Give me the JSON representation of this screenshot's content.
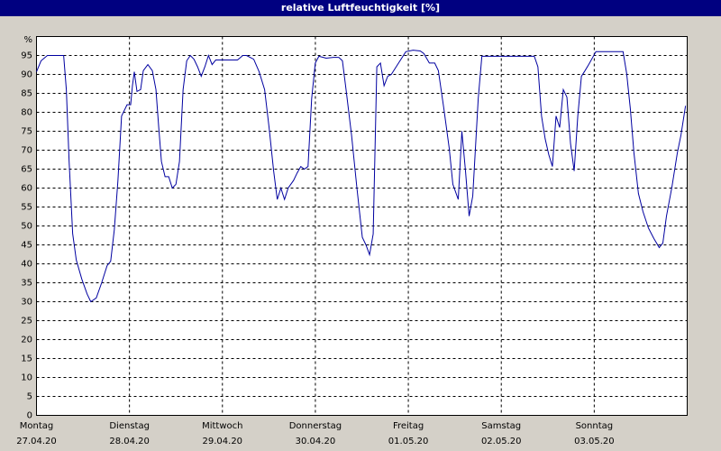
{
  "chart_data": {
    "type": "line",
    "title": "relative Luftfeuchtigkeit [%]",
    "y_unit": "%",
    "xlim": [
      0,
      7
    ],
    "ylim": [
      0,
      100
    ],
    "xticks": [
      {
        "value": 0,
        "label": "Montag",
        "date": "27.04.20"
      },
      {
        "value": 1,
        "label": "Dienstag",
        "date": "28.04.20"
      },
      {
        "value": 2,
        "label": "Mittwoch",
        "date": "29.04.20"
      },
      {
        "value": 3,
        "label": "Donnerstag",
        "date": "30.04.20"
      },
      {
        "value": 4,
        "label": "Freitag",
        "date": "01.05.20"
      },
      {
        "value": 5,
        "label": "Samstag",
        "date": "02.05.20"
      },
      {
        "value": 6,
        "label": "Sonntag",
        "date": "03.05.20"
      }
    ],
    "yticks": [
      0,
      5,
      10,
      15,
      20,
      25,
      30,
      35,
      40,
      45,
      50,
      55,
      60,
      65,
      70,
      75,
      80,
      85,
      90,
      95
    ],
    "grid": true,
    "x": [
      0,
      0.049,
      0.117,
      0.292,
      0.321,
      0.351,
      0.389,
      0.428,
      0.487,
      0.545,
      0.584,
      0.643,
      0.701,
      0.759,
      0.798,
      0.837,
      0.876,
      0.915,
      0.974,
      1.013,
      1.032,
      1.052,
      1.081,
      1.12,
      1.149,
      1.198,
      1.246,
      1.285,
      1.315,
      1.344,
      1.383,
      1.422,
      1.461,
      1.5,
      1.538,
      1.577,
      1.616,
      1.655,
      1.694,
      1.733,
      1.772,
      1.811,
      1.85,
      1.889,
      1.928,
      2.045,
      2.162,
      2.22,
      2.259,
      2.337,
      2.395,
      2.454,
      2.502,
      2.551,
      2.59,
      2.629,
      2.668,
      2.707,
      2.765,
      2.804,
      2.843,
      2.882,
      2.921,
      2.96,
      2.999,
      3.038,
      3.116,
      3.194,
      3.252,
      3.291,
      3.33,
      3.389,
      3.447,
      3.505,
      3.544,
      3.583,
      3.622,
      3.661,
      3.7,
      3.739,
      3.778,
      3.817,
      3.895,
      3.973,
      4.051,
      4.128,
      4.167,
      4.226,
      4.284,
      4.323,
      4.382,
      4.44,
      4.479,
      4.537,
      4.576,
      4.615,
      4.654,
      4.693,
      4.752,
      4.791,
      4.869,
      5.063,
      5.258,
      5.355,
      5.394,
      5.433,
      5.472,
      5.511,
      5.55,
      5.589,
      5.628,
      5.667,
      5.706,
      5.745,
      5.784,
      5.823,
      5.862,
      5.901,
      5.94,
      5.979,
      6.018,
      6.134,
      6.31,
      6.349,
      6.388,
      6.427,
      6.475,
      6.524,
      6.582,
      6.641,
      6.699,
      6.738,
      6.777,
      6.835,
      6.894,
      6.933,
      6.982
    ],
    "series": [
      {
        "color": "#0000a0",
        "values": [
          90.7,
          93.6,
          95,
          95,
          86,
          67,
          48,
          41,
          36,
          32,
          30,
          31,
          35,
          39.5,
          40.7,
          49,
          62,
          79,
          82,
          82,
          87,
          90.7,
          85.5,
          86,
          91,
          92.6,
          91,
          86,
          76,
          67,
          63,
          63,
          60,
          61,
          67,
          86,
          93.6,
          95,
          94,
          92,
          89.5,
          92,
          95,
          92.6,
          93.8,
          93.8,
          93.8,
          95,
          95,
          94,
          90.7,
          86,
          76,
          64.5,
          57,
          60,
          57,
          60,
          62,
          64,
          65.7,
          65,
          65.7,
          83.6,
          93,
          94.8,
          94.3,
          94.5,
          94.5,
          93.6,
          86,
          74,
          60,
          47,
          45,
          42.4,
          47.9,
          92,
          93,
          87,
          89.5,
          90,
          93,
          96,
          96.4,
          96.2,
          95.5,
          93,
          93,
          91,
          81,
          70.5,
          61,
          57,
          75,
          64.5,
          52.6,
          57.9,
          83.6,
          94.8,
          94.8,
          94.8,
          94.8,
          94.8,
          92,
          79,
          73,
          68.8,
          65.7,
          79,
          76,
          86,
          84,
          71.7,
          64.5,
          79,
          89.5,
          91,
          92.6,
          94.3,
          96,
          96,
          96,
          90.2,
          81,
          69.3,
          58.6,
          53.8,
          49.5,
          46.7,
          44.3,
          45.5,
          52.6,
          60.2,
          69.3,
          74,
          81.7
        ]
      }
    ]
  }
}
